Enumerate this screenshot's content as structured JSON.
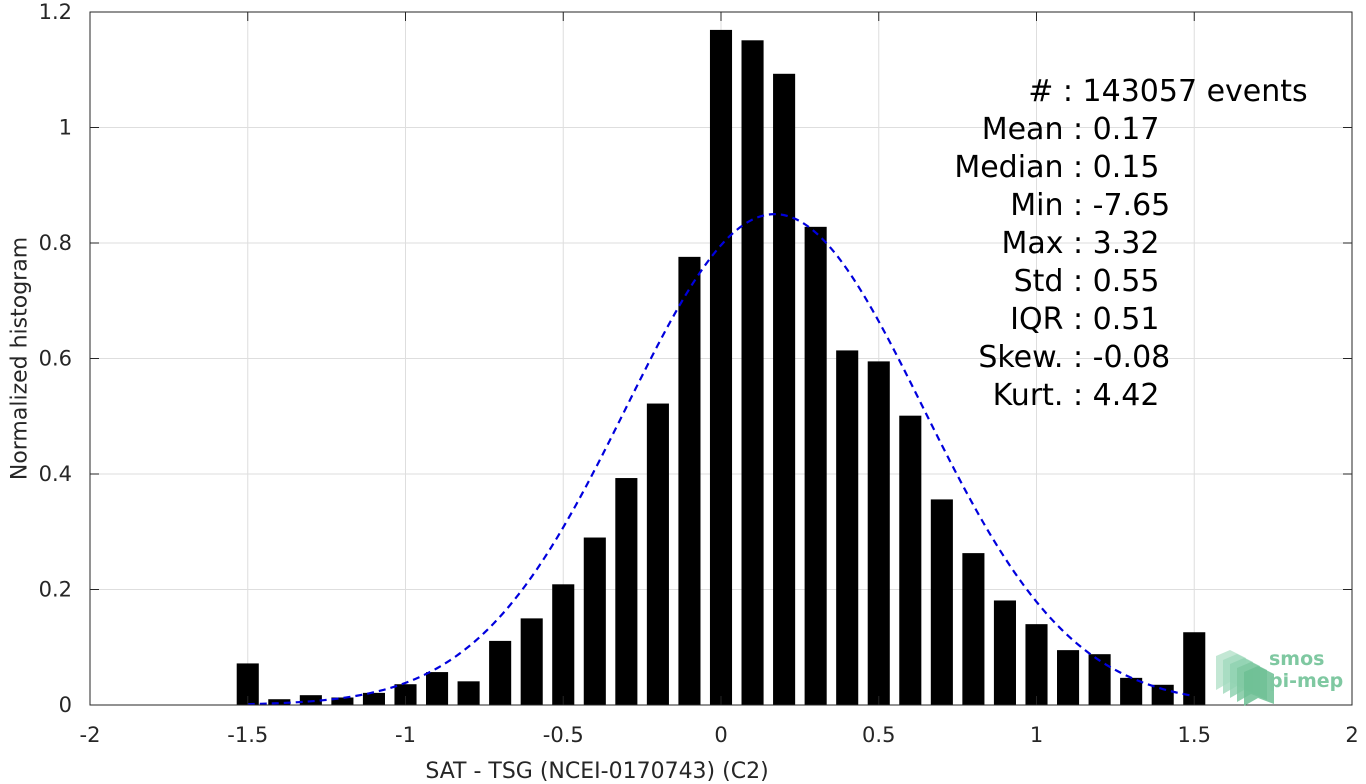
{
  "chart_data": {
    "type": "bar",
    "xlabel": "SAT - TSG (NCEI-0170743) (C2)",
    "ylabel": "Normalized histogram",
    "xlim": [
      -2,
      2
    ],
    "ylim": [
      0,
      1.2
    ],
    "xticks": [
      -2,
      -1.5,
      -1,
      -0.5,
      0,
      0.5,
      1,
      1.5,
      2
    ],
    "xtick_labels": [
      "-2",
      "-1.5",
      "-1",
      "-0.5",
      "0",
      "0.5",
      "1",
      "1.5",
      "2"
    ],
    "yticks": [
      0,
      0.2,
      0.4,
      0.6,
      0.8,
      1,
      1.2
    ],
    "ytick_labels": [
      "0",
      "0.2",
      "0.4",
      "0.6",
      "0.8",
      "1",
      "1.2"
    ],
    "grid": true,
    "bar_color": "#000000",
    "bins": [
      {
        "x": -1.5,
        "value": 0.072
      },
      {
        "x": -1.4,
        "value": 0.01
      },
      {
        "x": -1.3,
        "value": 0.017
      },
      {
        "x": -1.2,
        "value": 0.013
      },
      {
        "x": -1.1,
        "value": 0.021
      },
      {
        "x": -1.0,
        "value": 0.036
      },
      {
        "x": -0.9,
        "value": 0.057
      },
      {
        "x": -0.8,
        "value": 0.041
      },
      {
        "x": -0.7,
        "value": 0.111
      },
      {
        "x": -0.6,
        "value": 0.15
      },
      {
        "x": -0.5,
        "value": 0.209
      },
      {
        "x": -0.4,
        "value": 0.29
      },
      {
        "x": -0.3,
        "value": 0.393
      },
      {
        "x": -0.2,
        "value": 0.522
      },
      {
        "x": -0.1,
        "value": 0.776
      },
      {
        "x": 0.0,
        "value": 1.169
      },
      {
        "x": 0.1,
        "value": 1.151
      },
      {
        "x": 0.2,
        "value": 1.093
      },
      {
        "x": 0.3,
        "value": 0.828
      },
      {
        "x": 0.4,
        "value": 0.614
      },
      {
        "x": 0.5,
        "value": 0.595
      },
      {
        "x": 0.6,
        "value": 0.501
      },
      {
        "x": 0.7,
        "value": 0.356
      },
      {
        "x": 0.8,
        "value": 0.263
      },
      {
        "x": 0.9,
        "value": 0.181
      },
      {
        "x": 1.0,
        "value": 0.14
      },
      {
        "x": 1.1,
        "value": 0.095
      },
      {
        "x": 1.2,
        "value": 0.088
      },
      {
        "x": 1.3,
        "value": 0.047
      },
      {
        "x": 1.4,
        "value": 0.035
      },
      {
        "x": 1.5,
        "value": 0.126
      }
    ],
    "fit": {
      "type": "gaussian",
      "style": "dashed",
      "color": "#0000dd",
      "mean": 0.17,
      "std": 0.47,
      "peak": 0.85,
      "x_range": [
        -1.5,
        1.5
      ]
    },
    "annotations": [
      {
        "name": "Count",
        "text": "#  : 143057 events"
      },
      {
        "name": "Mean",
        "text": "Mean : 0.17"
      },
      {
        "name": "Median",
        "text": "Median : 0.15"
      },
      {
        "name": "Min",
        "text": "Min : -7.65"
      },
      {
        "name": "Max",
        "text": "Max : 3.32"
      },
      {
        "name": "Std",
        "text": "Std : 0.55"
      },
      {
        "name": "IQR",
        "text": "IQR : 0.51"
      },
      {
        "name": "Skew",
        "text": "Skew. : -0.08"
      },
      {
        "name": "Kurt",
        "text": "Kurt. : 4.42"
      }
    ]
  },
  "logo": {
    "line1": "smos",
    "line2": "pi-mep",
    "color": "#7fc8a1"
  }
}
